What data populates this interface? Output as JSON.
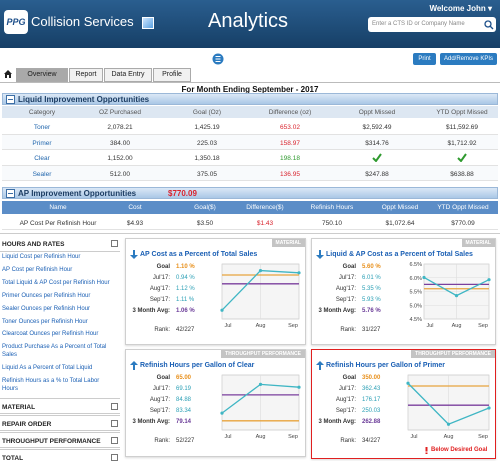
{
  "header": {
    "logo": "PPG",
    "product": "Collision Services",
    "app": "Analytics",
    "welcome": "Welcome John ▾",
    "search_placeholder": "Enter a CTS ID or Company Name"
  },
  "buttons": [
    "Print",
    "Add/Remove KPIs"
  ],
  "tabs": [
    "Overview",
    "Report",
    "Data Entry",
    "Profile"
  ],
  "active_tab": 0,
  "period": "For Month Ending September - 2017",
  "liquid": {
    "title": "Liquid Improvement Opportunities",
    "columns": [
      "Category",
      "OZ Purchased",
      "Goal (Oz)",
      "Difference (oz)",
      "Oppt Missed",
      "YTD Oppt Missed"
    ],
    "rows": [
      {
        "cells": [
          "Toner",
          "2,078.21",
          "1,425.19",
          "653.02",
          "$2,592.49",
          "$11,592.69"
        ],
        "difference_color": "#d9232d"
      },
      {
        "cells": [
          "Primer",
          "384.00",
          "225.03",
          "158.97",
          "$314.76",
          "$1,712.92"
        ],
        "difference_color": "#d9232d"
      },
      {
        "cells": [
          "Clear",
          "1,152.00",
          "1,350.18",
          "198.18"
        ],
        "difference_color": "#2f9a2f"
      },
      {
        "cells": [
          "Sealer",
          "512.00",
          "375.05",
          "136.95",
          "$247.88",
          "$638.88"
        ],
        "difference_color": "#d9232d"
      }
    ]
  },
  "ap": {
    "title": "AP Improvement Opportunities",
    "total": "$770.09",
    "columns": [
      "Name",
      "Cost",
      "Goal($)",
      "Difference($)",
      "Refinish Hours",
      "Oppt Missed",
      "YTD Oppt Missed"
    ],
    "rows": [
      {
        "cells": [
          "AP Cost Per Refinish Hour",
          "$4.93",
          "$3.50",
          "$1.43",
          "750.10",
          "$1,072.64",
          "$770.09"
        ],
        "difference_color": "#d9232d"
      }
    ]
  },
  "sidebar": {
    "sections": [
      {
        "title": "HOURS AND RATES",
        "links": [
          "Liquid Cost per Refinish Hour",
          "AP Cost per Refinish Hour",
          "Total Liquid & AP Cost per Refinish Hour",
          "Primer Ounces per Refinish Hour",
          "Sealer Ounces per Refinish Hour",
          "Toner Ounces per Refinish Hour",
          "Clearcoat Ounces per Refinish Hour",
          "Product Purchase As a Percent of Total Sales",
          "Liquid As a Percent of Total Liquid",
          "Refinish Hours as a % to Total Labor Hours"
        ]
      },
      {
        "title": "MATERIAL"
      },
      {
        "title": "REPAIR ORDER"
      },
      {
        "title": "THROUGHPUT PERFORMANCE"
      },
      {
        "title": "TOTAL"
      }
    ]
  },
  "cards": [
    {
      "badge": "MATERIAL",
      "title": "AP Cost as a Percent of Total Sales",
      "trend": "down",
      "rows": [
        {
          "label": "Goal",
          "value": 1.1,
          "value_label": "1.10 %"
        },
        {
          "label": "Jul'17:",
          "value": 0.94,
          "value_label": "0.94 %"
        },
        {
          "label": "Aug'17:",
          "value": 1.12,
          "value_label": "1.12 %"
        },
        {
          "label": "Sep'17:",
          "value": 1.11,
          "value_label": "1.11 %"
        },
        {
          "label": "3 Month Avg:",
          "value": 1.06,
          "value_label": "1.06 %"
        }
      ],
      "rank_label": "Rank:",
      "rank": "42/227",
      "x": [
        "Jul",
        "Aug",
        "Sep"
      ],
      "ylim": [
        0.9,
        1.15
      ]
    },
    {
      "badge": "MATERIAL",
      "title": "Liquid & AP Cost as a Percent of Total Sales",
      "trend": "down",
      "rows": [
        {
          "label": "Goal",
          "value": 5.6,
          "value_label": "5.60 %"
        },
        {
          "label": "Jul'17:",
          "value": 6.01,
          "value_label": "6.01 %"
        },
        {
          "label": "Aug'17:",
          "value": 5.35,
          "value_label": "5.35 %"
        },
        {
          "label": "Sep'17:",
          "value": 5.93,
          "value_label": "5.93 %"
        },
        {
          "label": "3 Month Avg:",
          "value": 5.76,
          "value_label": "5.76 %"
        }
      ],
      "rank_label": "Rank:",
      "rank": "31/227",
      "x": [
        "Jul",
        "Aug",
        "Sep"
      ],
      "ylim": [
        4.5,
        6.5
      ],
      "yticks": [
        {
          "value": 6.5,
          "label": "6.5%"
        },
        {
          "value": 6.0,
          "label": "6.0%"
        },
        {
          "value": 5.5,
          "label": "5.5%"
        },
        {
          "value": 5.0,
          "label": "5.0%"
        },
        {
          "value": 4.5,
          "label": "4.5%"
        }
      ]
    },
    {
      "badge": "THROUGHPUT PERFORMANCE",
      "title": "Refinish Hours per Gallon of Clear",
      "trend": "up",
      "rows": [
        {
          "label": "Goal",
          "value": 65.0,
          "value_label": "65.00"
        },
        {
          "label": "Jul'17:",
          "value": 69.19,
          "value_label": "69.19"
        },
        {
          "label": "Aug'17:",
          "value": 84.88,
          "value_label": "84.88"
        },
        {
          "label": "Sep'17:",
          "value": 83.34,
          "value_label": "83.34"
        },
        {
          "label": "3 Month Avg:",
          "value": 79.14,
          "value_label": "79.14"
        }
      ],
      "rank_label": "Rank:",
      "rank": "52/227",
      "x": [
        "Jul",
        "Aug",
        "Sep"
      ],
      "ylim": [
        60,
        90
      ]
    },
    {
      "badge": "THROUGHPUT PERFORMANCE",
      "title": "Refinish Hours per Gallon of Primer",
      "trend": "up",
      "alert": true,
      "rows": [
        {
          "label": "Goal",
          "value": 350.0,
          "value_label": "350.00"
        },
        {
          "label": "Jul'17:",
          "value": 362.43,
          "value_label": "362.43"
        },
        {
          "label": "Aug'17:",
          "value": 176.17,
          "value_label": "176.17"
        },
        {
          "label": "Sep'17:",
          "value": 250.03,
          "value_label": "250.03"
        },
        {
          "label": "3 Month Avg:",
          "value": 262.88,
          "value_label": "262.88"
        }
      ],
      "rank_label": "Rank:",
      "rank": "34/227",
      "x": [
        "Jul",
        "Aug",
        "Sep"
      ],
      "ylim": [
        150,
        400
      ],
      "note": "Below Desired Goal"
    }
  ]
}
